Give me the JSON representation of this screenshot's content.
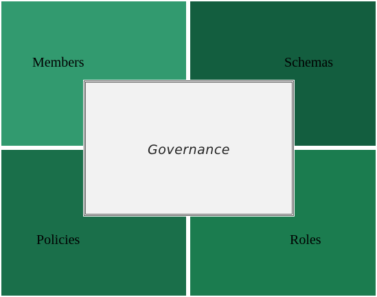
{
  "diagram": {
    "center": {
      "label": "Governance",
      "fill": "#f2f2f2"
    },
    "quadrants": [
      {
        "position": "top-left",
        "label": "Members",
        "color": "#329a6f"
      },
      {
        "position": "top-right",
        "label": "Schemas",
        "color": "#135e3f"
      },
      {
        "position": "bottom-left",
        "label": "Policies",
        "color": "#1a6f4a"
      },
      {
        "position": "bottom-right",
        "label": "Roles",
        "color": "#1b7c4f"
      }
    ]
  }
}
